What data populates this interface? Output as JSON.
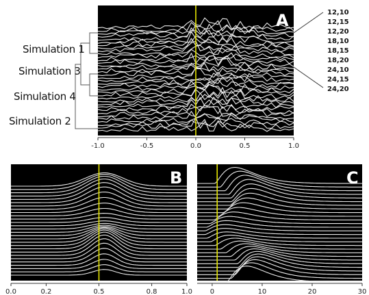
{
  "chart_data": [
    {
      "panel": "A",
      "type": "line",
      "title": "",
      "xlim": [
        -1.0,
        1.0
      ],
      "x_ticks": [
        "-1.0",
        "-0.5",
        "0.0",
        "0.5",
        "1.0"
      ],
      "marker_x": 0.0,
      "marker_color": "#e6e600",
      "background": "#000000",
      "trace_color": "#ececec",
      "n_traces": 36,
      "dendrogram_labels": [
        "Simulation 1",
        "Simulation 3",
        "Simulation 4",
        "Simulation 2"
      ],
      "legend_labels": [
        "12,10",
        "12,15",
        "12,20",
        "18,10",
        "18,15",
        "18,20",
        "24,10",
        "24,15",
        "24,20"
      ]
    },
    {
      "panel": "B",
      "type": "line",
      "title": "",
      "xlim": [
        0.0,
        1.0
      ],
      "x_ticks": [
        "0.0",
        "0.2",
        "0.5",
        "0.8",
        "1.0"
      ],
      "marker_x": 0.5,
      "marker_color": "#e6e600",
      "background": "#000000",
      "trace_color": "#ececec",
      "n_traces": 28
    },
    {
      "panel": "C",
      "type": "line",
      "title": "",
      "xlim": [
        -3,
        30
      ],
      "x_ticks": [
        "0",
        "10",
        "20",
        "30"
      ],
      "marker_x": 1,
      "marker_color": "#e6e600",
      "background": "#000000",
      "trace_color": "#ececec",
      "n_traces": 28
    }
  ]
}
